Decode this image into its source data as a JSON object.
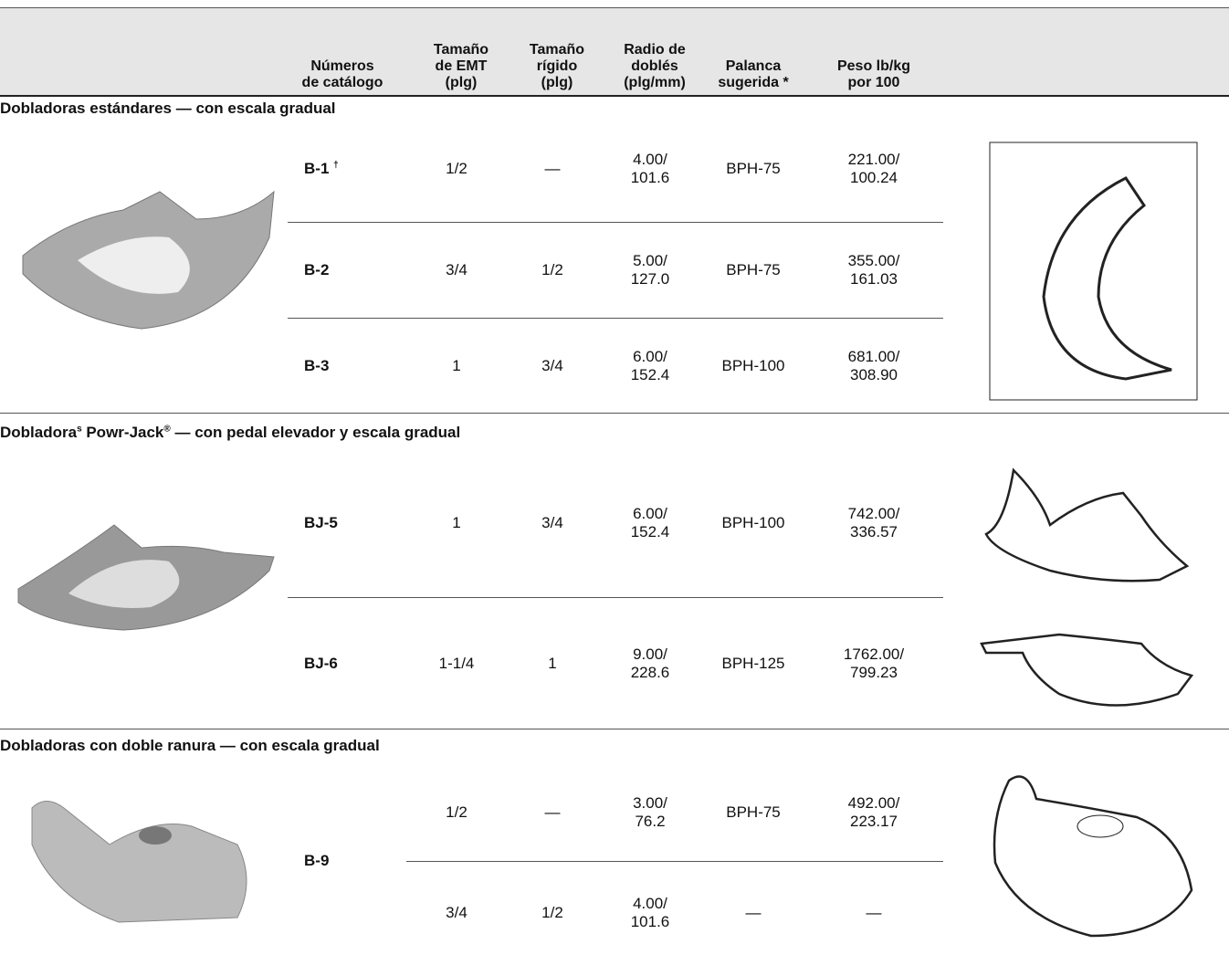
{
  "header": {
    "columns": [
      "Números\nde catálogo",
      "Tamaño\nde EMT\n(plg)",
      "Tamaño\nrígido\n(plg)",
      "Radio de\ndoblés\n(plg/mm)",
      "Palanca\nsugerida *",
      "Peso lb/kg\npor 100"
    ]
  },
  "sections": [
    {
      "title_parts": [
        "Dobladoras estándares — con escala gradual"
      ],
      "rows": [
        {
          "catalog": "B-1",
          "note": "†",
          "emt": "1/2",
          "rigid": "—",
          "radius": "4.00/\n101.6",
          "lever": "BPH-75",
          "weight": "221.00/\n100.24"
        },
        {
          "catalog": "B-2",
          "emt": "3/4",
          "rigid": "1/2",
          "radius": "5.00/\n127.0",
          "lever": "BPH-75",
          "weight": "355.00/\n161.03"
        },
        {
          "catalog": "B-3",
          "emt": "1",
          "rigid": "3/4",
          "radius": "6.00/\n152.4",
          "lever": "BPH-100",
          "weight": "681.00/\n308.90"
        }
      ]
    },
    {
      "title_parts": [
        "Dobladora",
        "s",
        " Powr-Jack",
        "®",
        " — con pedal elevador y escala gradual"
      ],
      "rows": [
        {
          "catalog": "BJ-5",
          "emt": "1",
          "rigid": "3/4",
          "radius": "6.00/\n152.4",
          "lever": "BPH-100",
          "weight": "742.00/\n336.57"
        },
        {
          "catalog": "BJ-6",
          "emt": "1-1/4",
          "rigid": "1",
          "radius": "9.00/\n228.6",
          "lever": "BPH-125",
          "weight": "1762.00/\n799.23"
        }
      ]
    },
    {
      "title_parts": [
        "Dobladoras con doble ranura — con escala gradual"
      ],
      "catalog": "B-9",
      "rows": [
        {
          "emt": "1/2",
          "rigid": "—",
          "radius": "3.00/\n76.2",
          "lever": "BPH-75",
          "weight": "492.00/\n223.17"
        },
        {
          "emt": "3/4",
          "rigid": "1/2",
          "radius": "4.00/\n101.6",
          "lever": "—",
          "weight": "—"
        }
      ]
    }
  ]
}
